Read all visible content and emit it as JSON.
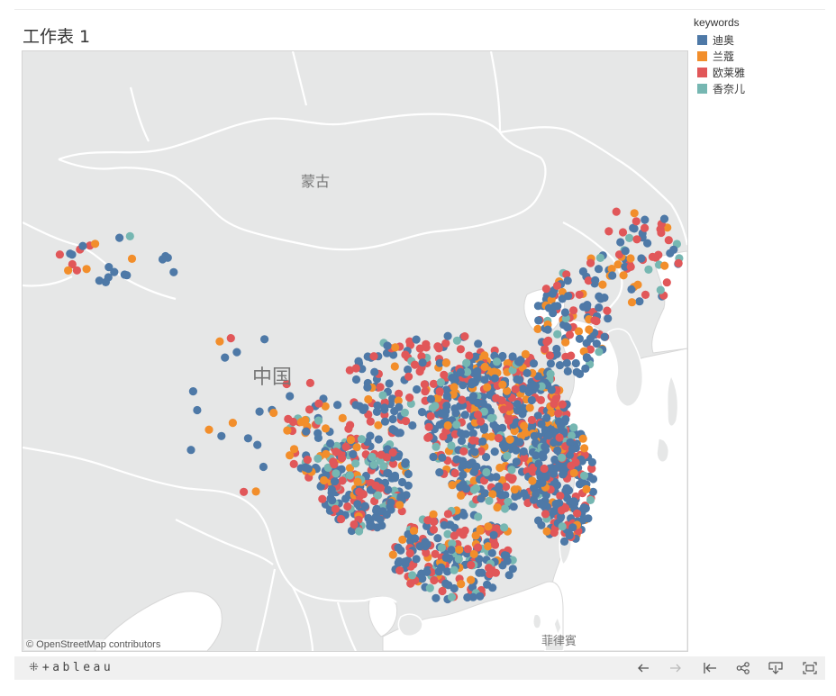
{
  "worksheet_title": "工作表 1",
  "map": {
    "labels": {
      "mongolia": "蒙古",
      "china": "中国",
      "philippines": "菲律賓"
    },
    "attribution": "© OpenStreetMap contributors"
  },
  "legend": {
    "title": "keywords",
    "items": [
      {
        "label": "迪奥",
        "color": "#4e79a7"
      },
      {
        "label": "兰蔻",
        "color": "#f28e2b"
      },
      {
        "label": "欧莱雅",
        "color": "#e15759"
      },
      {
        "label": "香奈儿",
        "color": "#76b7b2"
      }
    ]
  },
  "footer": {
    "logo": "+ableau",
    "buttons": [
      "undo",
      "redo",
      "revert",
      "share",
      "download",
      "fullscreen"
    ]
  },
  "colors": {
    "water": "#ffffff",
    "land": "#e6e7e7",
    "border": "#ffffff"
  }
}
